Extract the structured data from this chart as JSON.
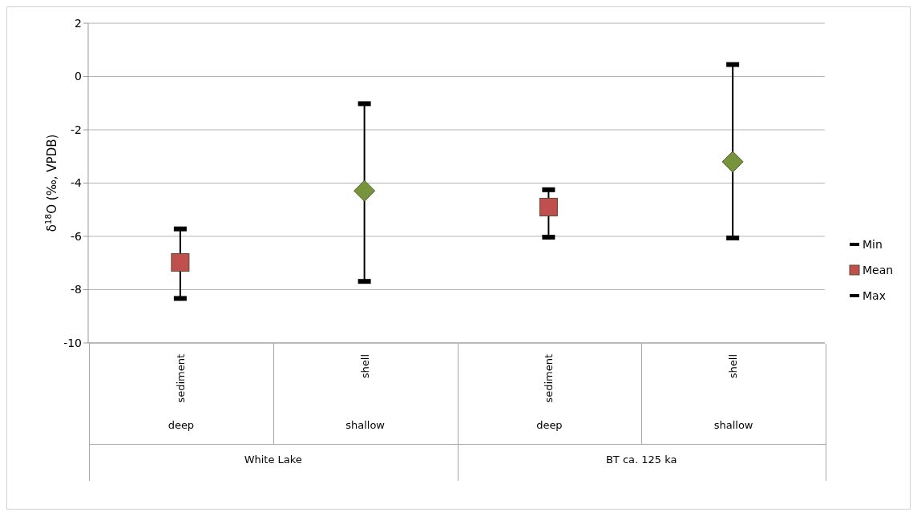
{
  "chart_data": {
    "type": "scatter",
    "ylabel": "δ$^{18}$O (‰, VPDB)",
    "categories": [
      "sediment",
      "shell",
      "sediment",
      "shell"
    ],
    "annotations": [
      "deep",
      "shallow",
      "deep",
      "shallow",
      "White Lake",
      "BT ca. 125 ka"
    ],
    "series": [
      {
        "name": "Min",
        "color": "#000000",
        "values": [
          -8.33,
          -7.69,
          -6.03,
          -6.06
        ]
      },
      {
        "name": "Mean",
        "color": "#c0504d",
        "marker": "square",
        "values": [
          -6.98,
          null,
          -4.9,
          null
        ]
      },
      {
        "name": "Max",
        "color": "#000000",
        "values": [
          -5.72,
          -1.02,
          -4.25,
          0.45
        ]
      },
      {
        "color": "#77933c",
        "marker": "diamond",
        "values": [
          null,
          -4.29,
          null,
          -3.2
        ]
      }
    ],
    "ylim": [
      -10,
      2
    ],
    "yticks": [
      -10,
      -8,
      -6,
      -4,
      -2,
      0,
      2
    ],
    "grid": "y",
    "legend": "right"
  }
}
